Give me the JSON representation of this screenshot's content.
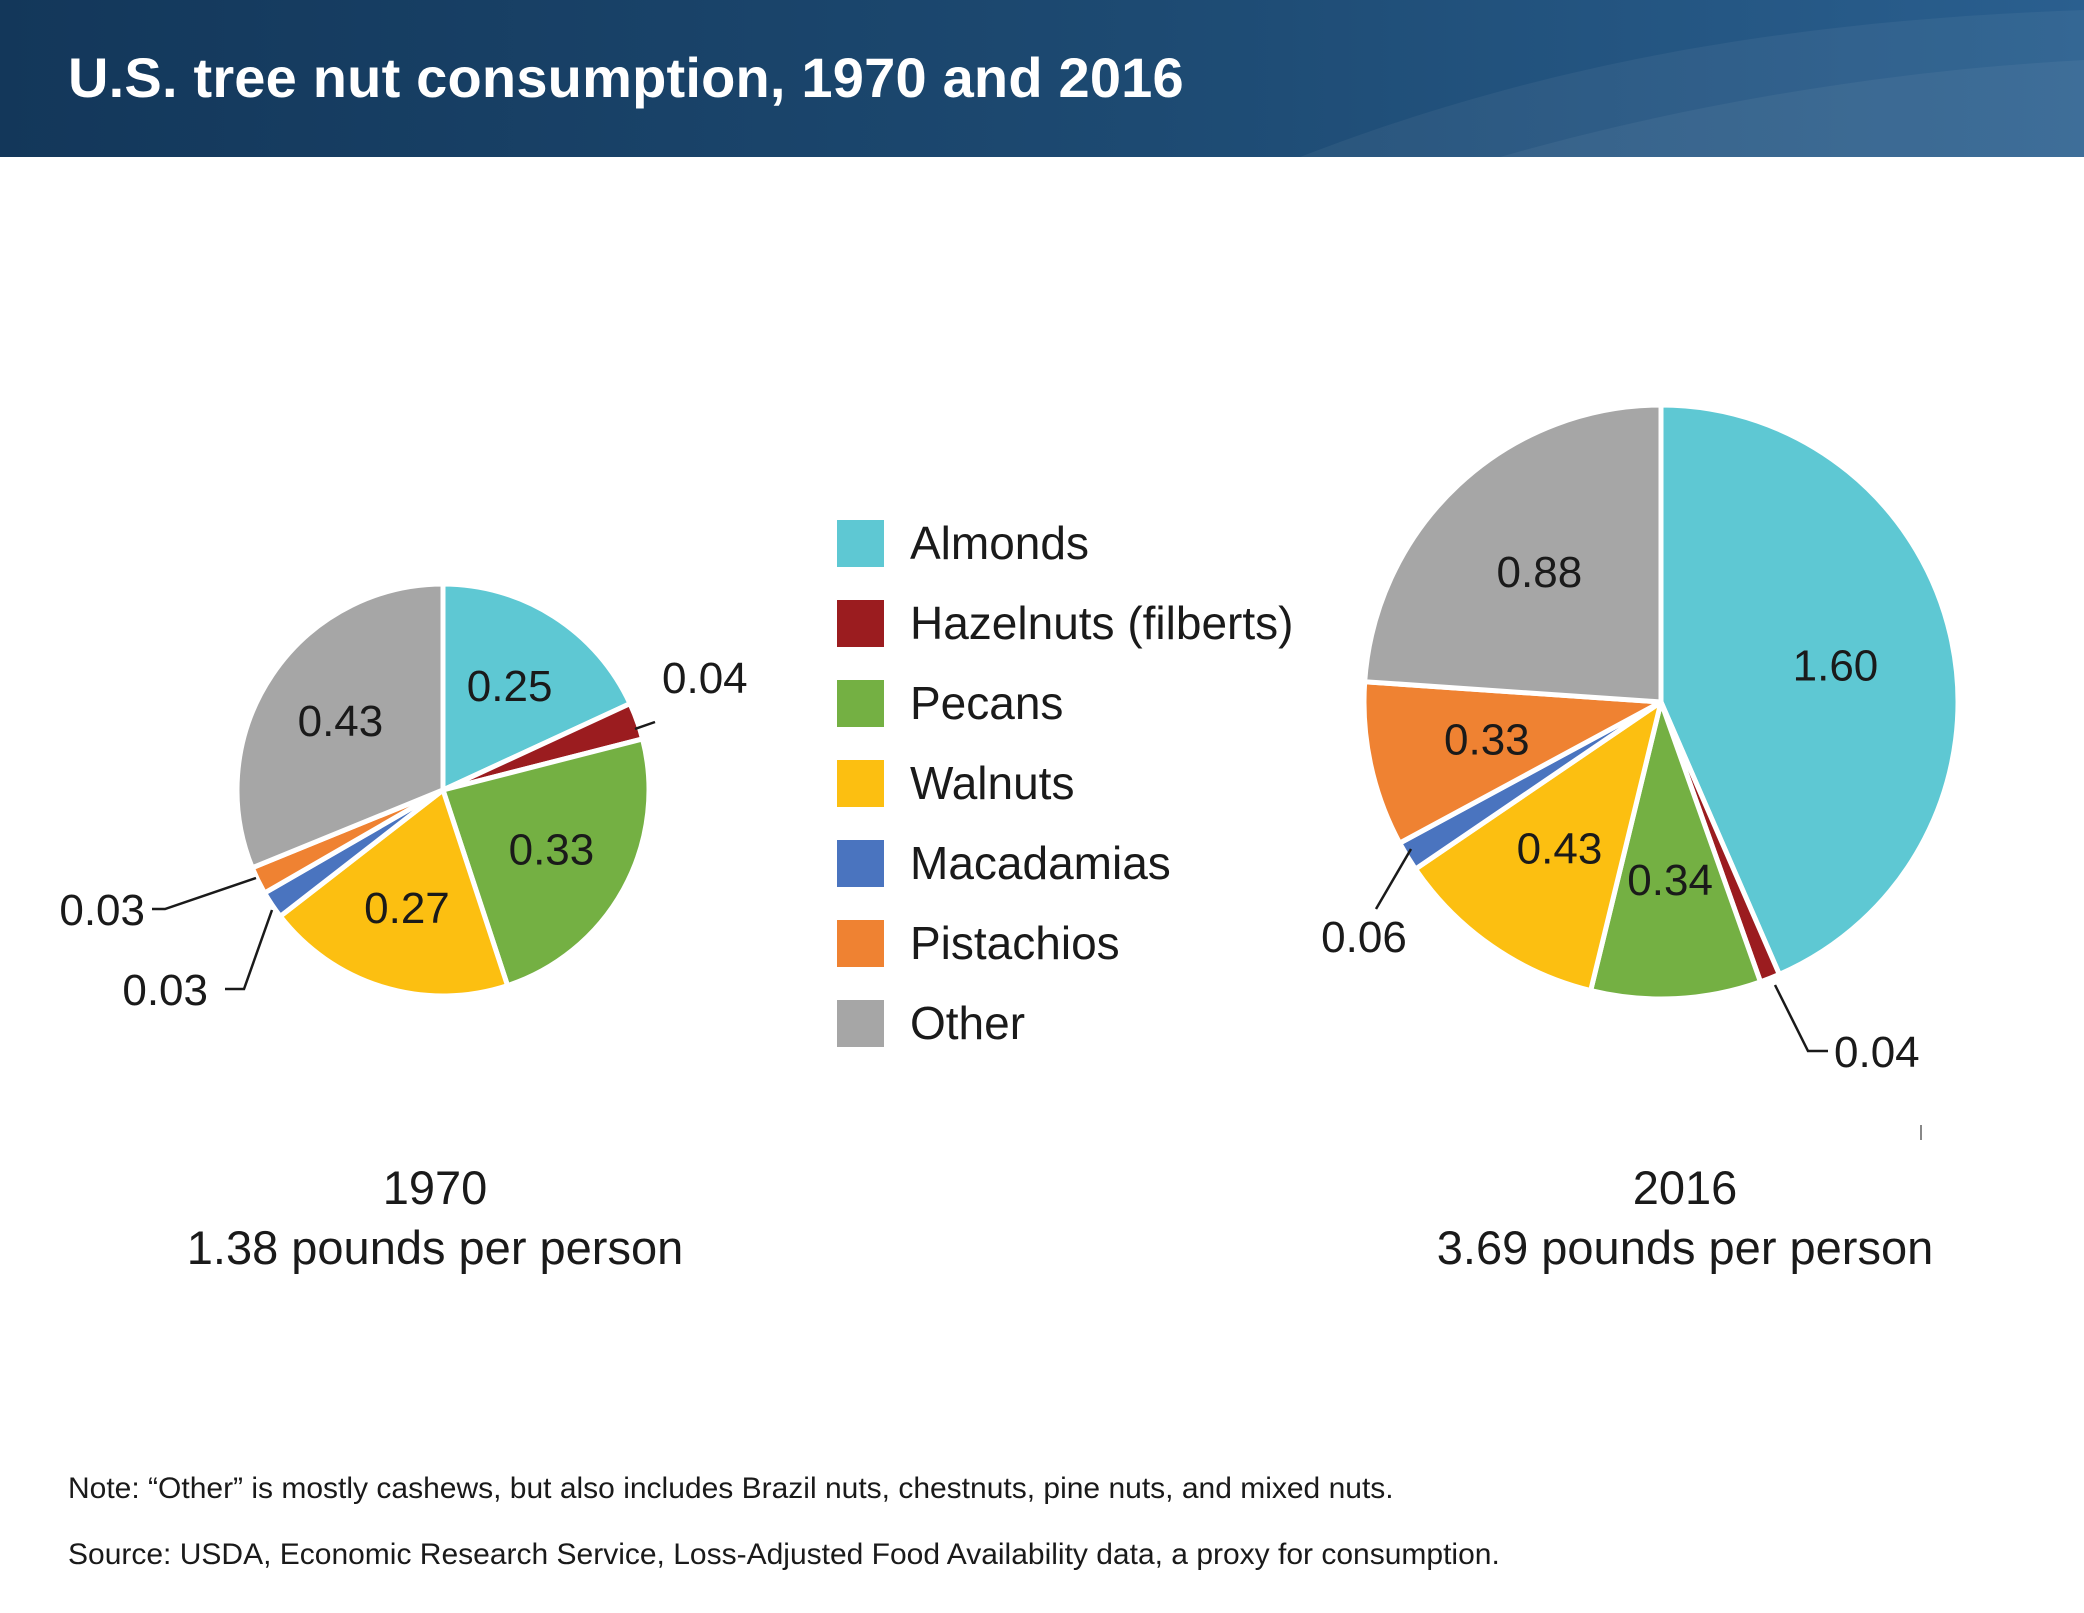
{
  "title": "U.S. tree nut consumption, 1970 and 2016",
  "colors": {
    "Almonds": "#5ec8d3",
    "Hazelnuts (filberts)": "#9b1c1f",
    "Pecans": "#74b043",
    "Walnuts": "#fcbf11",
    "Macadamias": "#4a74bf",
    "Pistachios": "#ef8232",
    "Other": "#a6a6a6"
  },
  "legend": [
    "Almonds",
    "Hazelnuts (filberts)",
    "Pecans",
    "Walnuts",
    "Macadamias",
    "Pistachios",
    "Other"
  ],
  "chart_data": [
    {
      "type": "pie",
      "year": "1970",
      "caption_year": "1970",
      "caption_total": "1.38 pounds per person",
      "total": 1.38,
      "slices": [
        {
          "name": "Almonds",
          "value": 0.25,
          "label": "0.25"
        },
        {
          "name": "Hazelnuts (filberts)",
          "value": 0.04,
          "label": "0.04"
        },
        {
          "name": "Pecans",
          "value": 0.33,
          "label": "0.33"
        },
        {
          "name": "Walnuts",
          "value": 0.27,
          "label": "0.27"
        },
        {
          "name": "Macadamias",
          "value": 0.03,
          "label": "0.03"
        },
        {
          "name": "Pistachios",
          "value": 0.03,
          "label": "0.03"
        },
        {
          "name": "Other",
          "value": 0.43,
          "label": "0.43"
        }
      ]
    },
    {
      "type": "pie",
      "year": "2016",
      "caption_year": "2016",
      "caption_total": "3.69 pounds per person",
      "total": 3.69,
      "slices": [
        {
          "name": "Almonds",
          "value": 1.6,
          "label": "1.60"
        },
        {
          "name": "Hazelnuts (filberts)",
          "value": 0.04,
          "label": "0.04"
        },
        {
          "name": "Pecans",
          "value": 0.34,
          "label": "0.34"
        },
        {
          "name": "Walnuts",
          "value": 0.43,
          "label": "0.43"
        },
        {
          "name": "Macadamias",
          "value": 0.06,
          "label": "0.06"
        },
        {
          "name": "Pistachios",
          "value": 0.33,
          "label": "0.33"
        },
        {
          "name": "Other",
          "value": 0.88,
          "label": "0.88"
        }
      ]
    }
  ],
  "note": "Note: “Other” is mostly cashews, but also includes Brazil nuts, chestnuts, pine nuts, and mixed nuts.",
  "source": "Source: USDA, Economic Research Service, Loss-Adjusted Food Availability data, a proxy for consumption."
}
